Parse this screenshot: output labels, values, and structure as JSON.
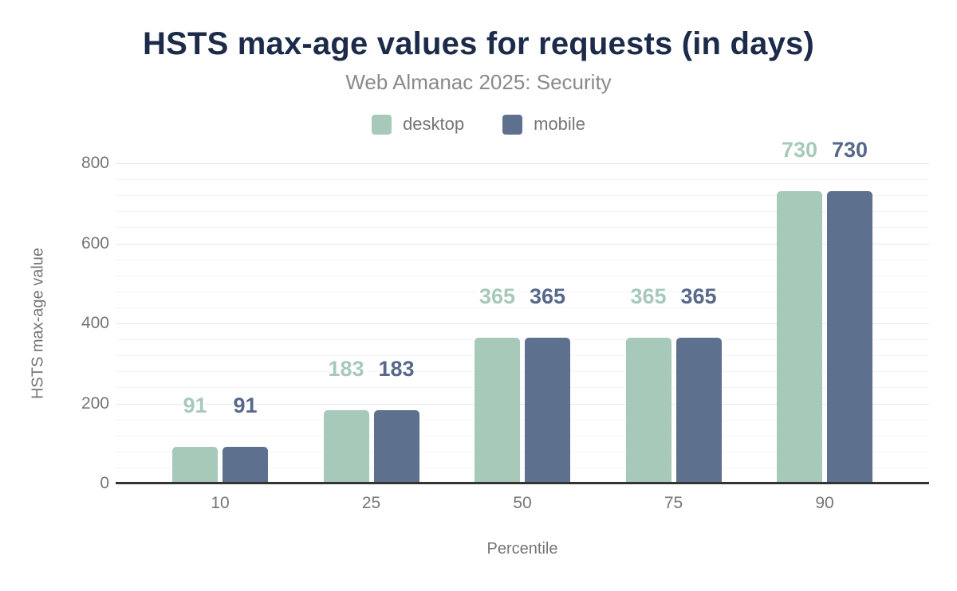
{
  "header": {
    "title": "HSTS max-age values for requests (in days)",
    "subtitle": "Web Almanac 2025: Security"
  },
  "colors": {
    "title": "#1c2b4a",
    "subtitle_gray": "#8a8a8a",
    "axis_gray": "#757575",
    "axis_line": "#333333",
    "grid_major": "#e7e7e7",
    "grid_minor": "#f4f4f4",
    "desktop": "#a7c9ba",
    "mobile": "#5d708e",
    "desktop_label": "#a7c9ba",
    "mobile_label": "#57688a"
  },
  "chart_data": {
    "type": "bar",
    "title": "HSTS max-age values for requests (in days)",
    "subtitle": "Web Almanac 2025: Security",
    "categories": [
      "10",
      "25",
      "50",
      "75",
      "90"
    ],
    "series": [
      {
        "name": "desktop",
        "color": "#a7c9ba",
        "label_color": "#a7c9ba",
        "values": [
          91,
          183,
          365,
          365,
          730
        ]
      },
      {
        "name": "mobile",
        "color": "#5d708e",
        "label_color": "#57688a",
        "values": [
          91,
          183,
          365,
          365,
          730
        ]
      }
    ],
    "xlabel": "Percentile",
    "ylabel": "HSTS max-age value",
    "ylim": [
      0,
      800
    ],
    "ytick_step": 200,
    "minor_grid_step": 40,
    "yticks": [
      "0",
      "200",
      "400",
      "600",
      "800"
    ],
    "grid": "horizontal",
    "legend_position": "top",
    "value_labels": "above-bars"
  }
}
